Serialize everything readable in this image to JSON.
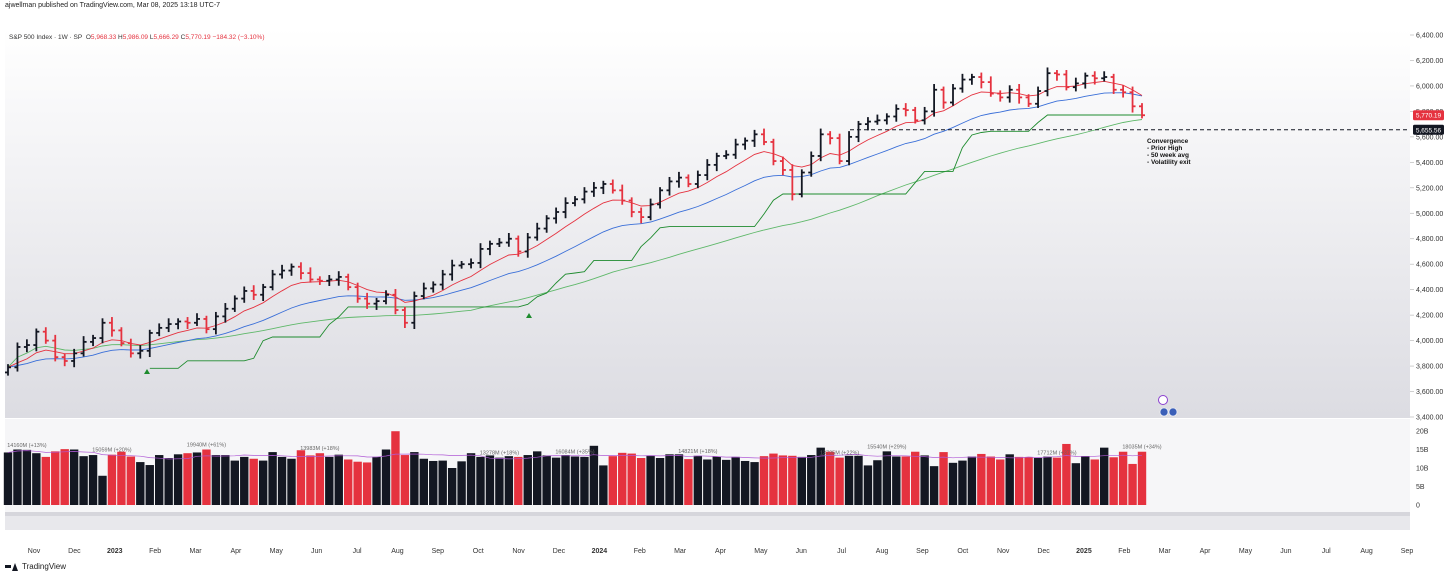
{
  "header": {
    "text": "ajwellman published on TradingView.com, Mar 08, 2025 13:18 UTC-7"
  },
  "footer": {
    "text": "TradingView"
  },
  "legend": {
    "title": "S&P 500 Index · 1W · SP",
    "o_label": "O",
    "o": "5,968.33",
    "h_label": "H",
    "h": "5,986.09",
    "l_label": "L",
    "l": "5,666.29",
    "c_label": "C",
    "c": "5,770.19",
    "chg": "−184.32 (−3.10%)"
  },
  "colors": {
    "up": "#131722",
    "down": "#e5323f",
    "ema_red": "#e5323f",
    "ema_blue": "#3a6fd8",
    "stop_green": "#1e8b2e",
    "ma50_green": "#5fb86a",
    "volume_ma": "#b05ad6"
  },
  "price_labels": {
    "last": "5,770.19",
    "line": "5,655.56"
  },
  "annotation": {
    "lines": [
      "Convergence",
      "- Prior High",
      "- 50 week avg",
      "- Volatility exit"
    ]
  },
  "chart_data": {
    "type": "bar",
    "title": "S&P 500 Index · 1W · SP",
    "price_axis": {
      "ticks": [
        "6,400.00",
        "6,200.00",
        "6,000.00",
        "5,800.00",
        "5,600.00",
        "5,400.00",
        "5,200.00",
        "5,000.00",
        "4,800.00",
        "4,600.00",
        "4,400.00",
        "4,200.00",
        "4,000.00",
        "3,800.00",
        "3,600.00",
        "3,400.00"
      ],
      "ylim": [
        3400,
        6400
      ]
    },
    "volume_axis": {
      "ticks": [
        "20B",
        "15B",
        "10B",
        "5B",
        "0"
      ],
      "ylim": [
        0,
        20
      ]
    },
    "time_axis": {
      "labels": [
        "Nov",
        "Dec",
        "2023",
        "Feb",
        "Mar",
        "Apr",
        "May",
        "Jun",
        "Jul",
        "Aug",
        "Sep",
        "Oct",
        "Nov",
        "Dec",
        "2024",
        "Feb",
        "Mar",
        "Apr",
        "May",
        "Jun",
        "Jul",
        "Aug",
        "Sep",
        "Oct",
        "Nov",
        "Dec",
        "2025",
        "Feb",
        "Mar",
        "Apr",
        "May",
        "Jun",
        "Jul",
        "Aug",
        "Sep"
      ]
    },
    "horizontal_line": 5655.56,
    "volume_labels": [
      "14160M (+13%)",
      "15059M (+20%)",
      "19940M (+61%)",
      "13983M (+18%)",
      "13278M (+18%)",
      "16084M (+35%)",
      "14821M (+18%)",
      "13725M (+22%)",
      "15540M (+29%)",
      "17712M (+37%)",
      "18035M (+34%)"
    ],
    "weekly_close": [
      3790,
      3950,
      3965,
      4070,
      4000,
      3870,
      3840,
      3900,
      3990,
      4020,
      4140,
      4080,
      3980,
      3900,
      3920,
      4060,
      4100,
      4130,
      4150,
      4140,
      4170,
      4090,
      4190,
      4250,
      4330,
      4390,
      4360,
      4420,
      4520,
      4550,
      4580,
      4530,
      4480,
      4470,
      4480,
      4500,
      4420,
      4330,
      4290,
      4310,
      4360,
      4240,
      4140,
      4350,
      4410,
      4440,
      4520,
      4590,
      4600,
      4610,
      4720,
      4760,
      4770,
      4800,
      4700,
      4810,
      4880,
      4960,
      5010,
      5080,
      5110,
      5170,
      5200,
      5230,
      5180,
      5100,
      5010,
      4970,
      5070,
      5180,
      5250,
      5280,
      5230,
      5300,
      5380,
      5450,
      5460,
      5540,
      5570,
      5620,
      5560,
      5410,
      5340,
      5150,
      5320,
      5450,
      5620,
      5590,
      5410,
      5600,
      5700,
      5720,
      5730,
      5760,
      5820,
      5810,
      5730,
      5800,
      5970,
      5870,
      5980,
      6050,
      6070,
      6030,
      5940,
      5910,
      5970,
      5910,
      5860,
      5960,
      6100,
      6090,
      5990,
      6020,
      6080,
      6060,
      6070,
      5970,
      5950,
      5840,
      5770
    ],
    "weekly_volume": [
      14.2,
      15.0,
      14.9,
      14.0,
      13.0,
      14.5,
      15.1,
      15.0,
      13.2,
      13.5,
      7.9,
      13.6,
      14.4,
      13.1,
      11.6,
      10.8,
      13.5,
      12.7,
      13.7,
      14.0,
      14.2,
      15.0,
      13.5,
      13.5,
      12.0,
      13.0,
      12.5,
      12.0,
      14.3,
      13.0,
      12.5,
      14.8,
      13.4,
      14.0,
      13.0,
      13.6,
      12.3,
      11.7,
      11.5,
      13.0,
      15.0,
      19.94,
      13.5,
      14.3,
      12.5,
      11.9,
      12.0,
      10.0,
      11.8,
      14.0,
      13.0,
      13.4,
      12.8,
      13.2,
      13.0,
      13.5,
      14.5,
      13.4,
      12.8,
      13.5,
      13.1,
      13.0,
      16.0,
      10.7,
      13.2,
      14.1,
      13.9,
      12.7,
      13.4,
      12.7,
      13.7,
      13.7,
      12.4,
      13.3,
      12.3,
      13.1,
      12.2,
      13.0,
      11.9,
      11.6,
      13.2,
      13.9,
      13.4,
      13.3,
      13.0,
      13.5,
      15.5,
      14.4,
      12.8,
      13.3,
      13.3,
      10.7,
      12.1,
      14.5,
      13.1,
      13.1,
      14.4,
      13.4,
      10.5,
      14.3,
      11.4,
      12.0,
      13.1,
      13.8,
      13.1,
      12.3,
      13.7,
      13.0,
      12.9,
      12.7,
      13.1,
      12.8,
      16.5,
      11.3,
      13.2,
      12.3,
      15.5,
      12.9,
      14.4,
      11.1,
      14.4
    ]
  }
}
